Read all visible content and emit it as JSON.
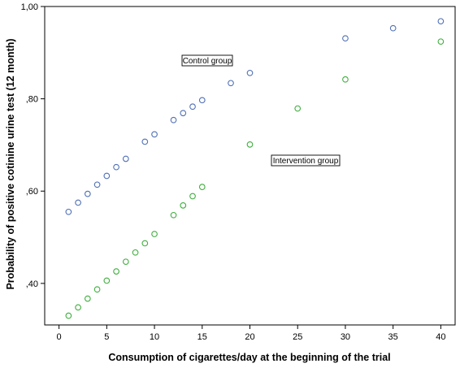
{
  "chart_data": {
    "type": "scatter",
    "title": "",
    "xlabel": "Consumption of cigarettes/day at the beginning of the trial",
    "ylabel": "Probability of positive cotinine urine test (12 month)",
    "xlim": [
      -1.5,
      41.5
    ],
    "ylim": [
      0.31,
      1.0
    ],
    "x_ticks": [
      0,
      5,
      10,
      15,
      20,
      25,
      30,
      35,
      40
    ],
    "x_tick_labels": [
      "0",
      "5",
      "10",
      "15",
      "20",
      "25",
      "30",
      "35",
      "40"
    ],
    "y_ticks": [
      0.4,
      0.6,
      0.8,
      1.0
    ],
    "y_tick_labels": [
      ",40",
      ",60",
      ",80",
      "1,00"
    ],
    "grid": false,
    "legend": "none",
    "marker": "open-circle",
    "series": [
      {
        "name": "Control group",
        "color": "#4f6fb5",
        "x": [
          1,
          2,
          3,
          4,
          5,
          6,
          7,
          9,
          10,
          12,
          13,
          14,
          15,
          18,
          20,
          30,
          35,
          40
        ],
        "y": [
          0.555,
          0.575,
          0.594,
          0.614,
          0.633,
          0.652,
          0.67,
          0.707,
          0.723,
          0.754,
          0.769,
          0.783,
          0.797,
          0.834,
          0.856,
          0.931,
          0.953,
          0.968
        ]
      },
      {
        "name": "Intervention group",
        "color": "#3fae3f",
        "x": [
          1,
          2,
          3,
          4,
          5,
          6,
          7,
          8,
          9,
          10,
          12,
          13,
          14,
          15,
          20,
          25,
          30,
          40
        ],
        "y": [
          0.33,
          0.348,
          0.367,
          0.387,
          0.406,
          0.426,
          0.447,
          0.467,
          0.487,
          0.507,
          0.548,
          0.569,
          0.589,
          0.609,
          0.701,
          0.779,
          0.842,
          0.924
        ]
      }
    ],
    "annotations": [
      {
        "text": "Control group",
        "series": 0
      },
      {
        "text": "Intervention group",
        "series": 1
      }
    ]
  }
}
